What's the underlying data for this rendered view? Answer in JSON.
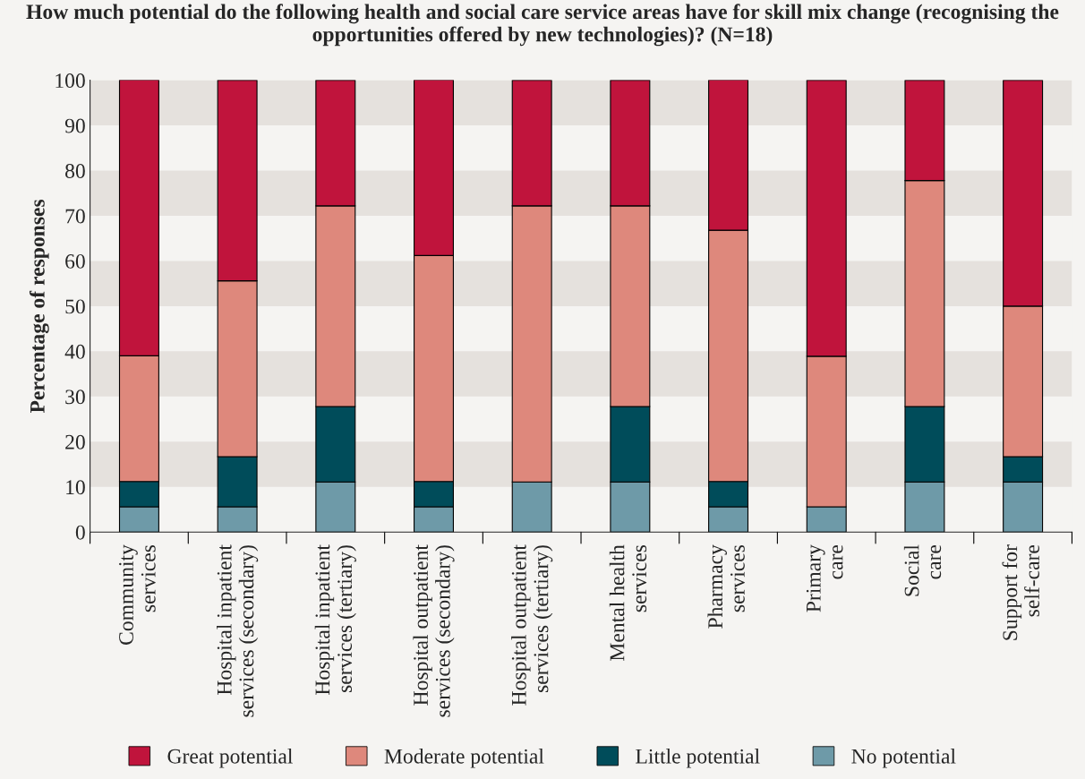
{
  "chart_data": {
    "type": "bar",
    "stacked": true,
    "title": "How much potential do the following health and social care service areas have for skill mix change (recognising the opportunities offered by new technologies)? (N=18)",
    "ylabel": "Percentage of responses",
    "categories": [
      "Community\nservices",
      "Hospital inpatient\nservices (secondary)",
      "Hospital inpatient\nservices (tertiary)",
      "Hospital outpatient\nservices (secondary)",
      "Hospital outpatient\nservices (tertiary)",
      "Mental health\nservices",
      "Pharmacy\nservices",
      "Primary\ncare",
      "Social\ncare",
      "Support for\nself-care"
    ],
    "series": [
      {
        "name": "No potential",
        "color": "#6e9aa8",
        "values": [
          5.6,
          5.6,
          11.1,
          5.6,
          11.1,
          11.1,
          5.6,
          5.6,
          11.1,
          11.1
        ]
      },
      {
        "name": "Little potential",
        "color": "#004c5a",
        "values": [
          5.6,
          11.1,
          16.7,
          5.6,
          0,
          16.7,
          5.6,
          0,
          16.7,
          5.6
        ]
      },
      {
        "name": "Moderate potential",
        "color": "#de887c",
        "values": [
          27.8,
          38.9,
          44.4,
          50.0,
          61.1,
          44.4,
          55.6,
          33.3,
          50.0,
          33.3
        ]
      },
      {
        "name": "Great potential",
        "color": "#c0143c",
        "values": [
          61.1,
          44.4,
          27.8,
          38.9,
          27.8,
          27.8,
          33.3,
          61.1,
          22.2,
          50.0
        ]
      }
    ],
    "ylim": [
      0,
      100
    ],
    "yticks": [
      0,
      10,
      20,
      30,
      40,
      50,
      60,
      70,
      80,
      90,
      100
    ],
    "bands": [
      {
        "axis": "y",
        "from": 10,
        "to": 20,
        "color": "#e5e1dd"
      },
      {
        "axis": "y",
        "from": 30,
        "to": 40,
        "color": "#e5e1dd"
      },
      {
        "axis": "y",
        "from": 50,
        "to": 60,
        "color": "#e5e1dd"
      },
      {
        "axis": "y",
        "from": 70,
        "to": 80,
        "color": "#e5e1dd"
      },
      {
        "axis": "y",
        "from": 90,
        "to": 100,
        "color": "#e5e1dd"
      }
    ],
    "legend": "bottom"
  }
}
